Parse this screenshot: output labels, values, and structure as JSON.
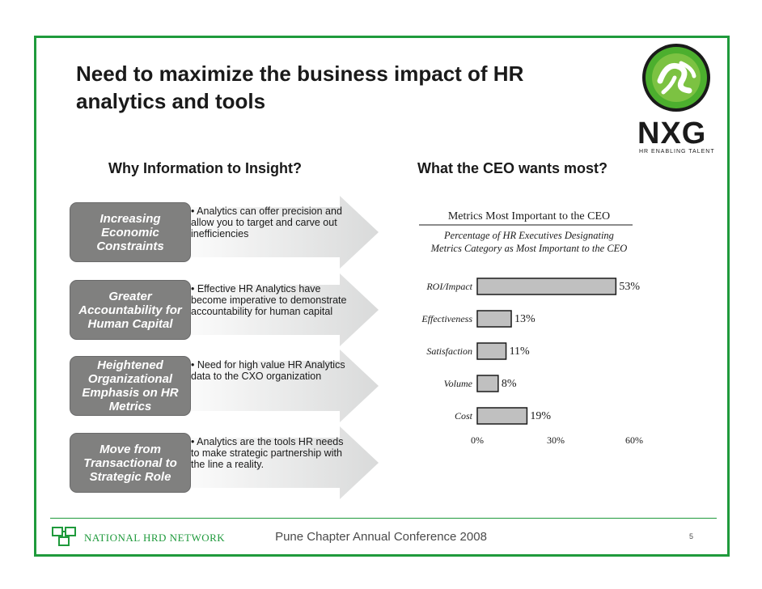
{
  "slide": {
    "title": "Need to maximize the business impact of HR analytics and tools",
    "logo": {
      "name": "NXG",
      "tagline": "HR ENABLING TALENT"
    }
  },
  "left": {
    "heading": "Why Information to Insight?",
    "rows": [
      {
        "label": "Increasing Economic Constraints",
        "text": "• Analytics can offer precision and allow you to target and carve out inefficiencies"
      },
      {
        "label": "Greater Accountability for Human Capital",
        "text": "• Effective HR Analytics have become imperative to demonstrate accountability for human capital"
      },
      {
        "label": "Heightened Organizational Emphasis on HR Metrics",
        "text": "• Need for high value HR Analytics data to the CXO organization"
      },
      {
        "label": "Move from Transactional to Strategic Role",
        "text": "• Analytics are the tools HR needs to make strategic partnership with the line a reality."
      }
    ]
  },
  "right": {
    "heading": "What the CEO wants most?"
  },
  "chart_data": {
    "type": "bar",
    "orientation": "horizontal",
    "title": "Metrics Most Important to the CEO",
    "subtitle": "Percentage of HR Executives Designating Metrics Category as Most Important to the CEO",
    "categories": [
      "ROI/Impact",
      "Effectiveness",
      "Satisfaction",
      "Volume",
      "Cost"
    ],
    "values": [
      53,
      13,
      11,
      8,
      19
    ],
    "value_labels": [
      "53%",
      "13%",
      "11%",
      "8%",
      "19%"
    ],
    "xlim": [
      0,
      60
    ],
    "xticks": [
      "0%",
      "30%",
      "60%"
    ],
    "bar_color": "#c0c0c0",
    "grid": false
  },
  "footer": {
    "org": "NATIONAL HRD NETWORK",
    "conference": "Pune Chapter Annual Conference 2008",
    "page": "5"
  }
}
